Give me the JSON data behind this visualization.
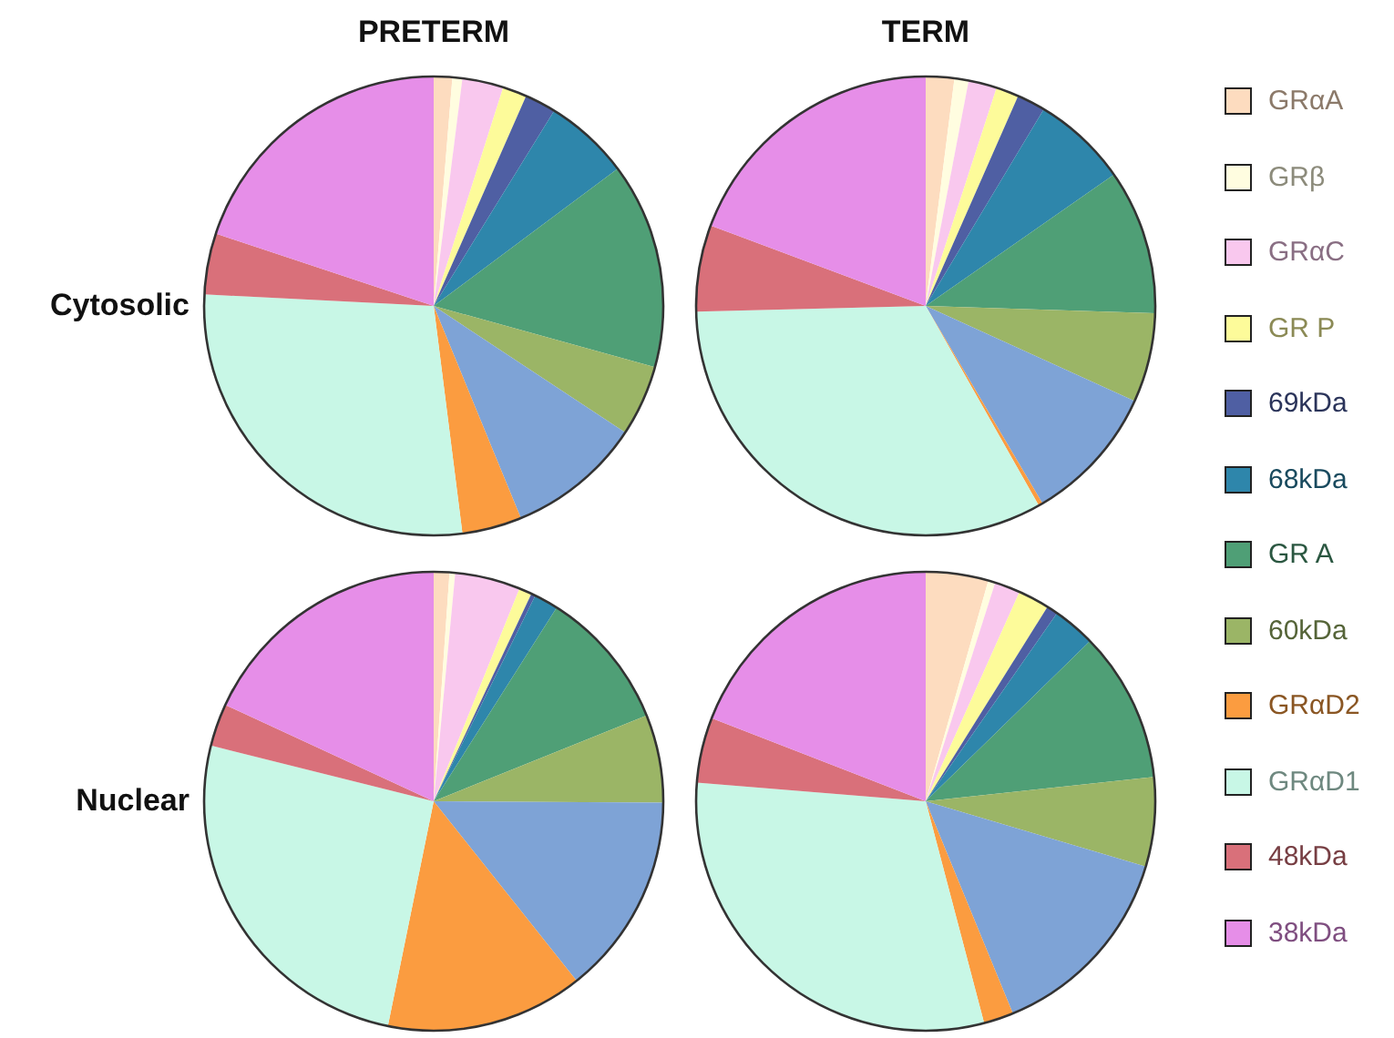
{
  "chart_data": [
    {
      "type": "pie",
      "title": "PRETERM",
      "ylabel": "Cytosolic",
      "legend": "right",
      "categories": [
        "GRαA",
        "GRβ",
        "GRαC",
        "GR P",
        "69kDa",
        "68kDa",
        "GR A",
        "60kDa",
        null,
        "GRαD2",
        "GRαD1",
        "48kDa",
        "38kDa"
      ],
      "colors": [
        "#fddcbf",
        "#fffde0",
        "#f9c8ee",
        "#fdfb9a",
        "#4f5fa3",
        "#2e86ab",
        "#4f9f76",
        "#9bb566",
        "#7ea3d6",
        "#fb9c40",
        "#c8f7e6",
        "#d9707a",
        "#e68ee8"
      ],
      "values": [
        1.3,
        0.7,
        2.9,
        1.7,
        2.2,
        6.0,
        14.5,
        5.0,
        9.5,
        4.2,
        27.8,
        4.3,
        19.9
      ]
    },
    {
      "type": "pie",
      "title": "TERM",
      "categories": [
        null,
        null,
        null,
        null,
        null,
        null,
        null,
        null,
        null,
        null,
        null,
        null,
        null
      ],
      "colors": [
        "#fddcbf",
        "#fffde0",
        "#f9c8ee",
        "#fdfb9a",
        "#4f5fa3",
        "#2e86ab",
        "#4f9f76",
        "#9bb566",
        "#7ea3d6",
        "#fb9c40",
        "#c8f7e6",
        "#d9707a",
        "#e68ee8"
      ],
      "values": [
        2.0,
        1.0,
        2.0,
        1.6,
        2.0,
        6.7,
        10.2,
        6.3,
        9.7,
        0.3,
        32.8,
        6.1,
        19.3
      ]
    },
    {
      "type": "pie",
      "ylabel": "Nuclear",
      "categories": [
        null,
        null,
        null,
        null,
        null,
        null,
        null,
        null,
        null,
        null,
        null,
        null,
        null
      ],
      "colors": [
        "#fddcbf",
        "#fffde0",
        "#f9c8ee",
        "#fdfb9a",
        "#4f5fa3",
        "#2e86ab",
        "#4f9f76",
        "#9bb566",
        "#7ea3d6",
        "#fb9c40",
        "#c8f7e6",
        "#d9707a",
        "#e68ee8"
      ],
      "values": [
        1.1,
        0.4,
        4.6,
        0.9,
        0.3,
        1.7,
        9.9,
        6.2,
        14.2,
        13.9,
        25.7,
        3.0,
        18.1
      ]
    },
    {
      "type": "pie",
      "categories": [
        null,
        null,
        null,
        null,
        null,
        null,
        null,
        null,
        null,
        null,
        null,
        null,
        null
      ],
      "colors": [
        "#fddcbf",
        "#fffde0",
        "#f9c8ee",
        "#fdfb9a",
        "#4f5fa3",
        "#2e86ab",
        "#4f9f76",
        "#9bb566",
        "#7ea3d6",
        "#fb9c40",
        "#c8f7e6",
        "#d9707a",
        "#e68ee8"
      ],
      "values": [
        4.4,
        0.5,
        1.8,
        2.2,
        0.8,
        3.0,
        10.6,
        6.3,
        14.2,
        2.1,
        30.4,
        4.6,
        19.1
      ]
    }
  ]
}
